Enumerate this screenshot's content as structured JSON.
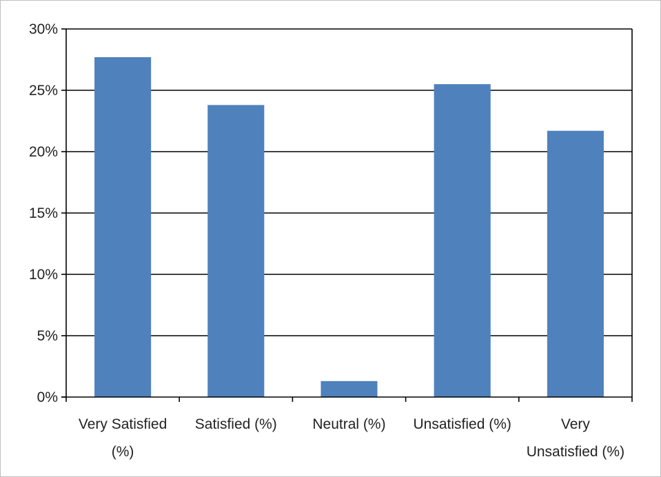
{
  "chart_data": {
    "type": "bar",
    "categories": [
      [
        "Very Satisfied",
        "(%)"
      ],
      [
        "Satisfied (%)"
      ],
      [
        "Neutral (%)"
      ],
      [
        "Unsatisfied (%)"
      ],
      [
        "Very",
        "Unsatisfied (%)"
      ]
    ],
    "values": [
      27.7,
      23.8,
      1.3,
      25.5,
      21.7
    ],
    "yticks": [
      "0%",
      "5%",
      "10%",
      "15%",
      "20%",
      "25%",
      "30%"
    ],
    "ylim": [
      0,
      30
    ],
    "grid": true,
    "bar_color": "#4f81bd",
    "grid_color": "#000000"
  }
}
